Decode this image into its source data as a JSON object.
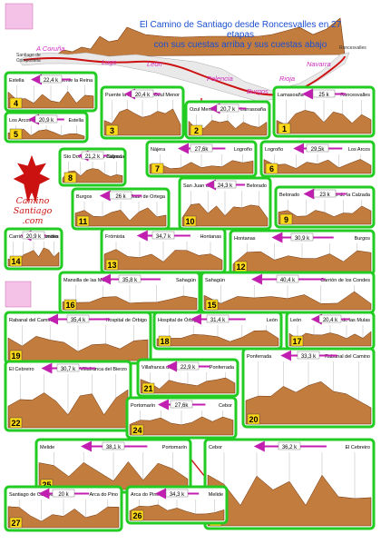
{
  "title": {
    "line1": "El Camino de Santiago desde Roncesvalles en 27 etapas",
    "line2": "con sus cuestas arriba y sus cuestas abajo"
  },
  "logo": {
    "text_line1": "El",
    "text_line2": "Camino",
    "text_line3": "Santiago",
    "text_line4": ".com"
  },
  "map": {
    "regions": [
      "A Coruña",
      "Lugo",
      "León",
      "Palencia",
      "Burgos",
      "Rioja",
      "Navarra"
    ],
    "start_label": "Santiago de Compostela",
    "end_label": "Roncesvalles"
  },
  "stages": [
    {
      "n": "1",
      "from": "Lamasoaña",
      "to": "Roncesvalles",
      "km": "25 k"
    },
    {
      "n": "2",
      "from": "Ozul Menor",
      "to": "Larrasoaña",
      "km": "20,7 k"
    },
    {
      "n": "3",
      "from": "Puente la Reina",
      "to": "Ozul Menor",
      "km": "20,4 k"
    },
    {
      "n": "4",
      "from": "Estella",
      "to": "Puente la Reina",
      "km": "22,4 k"
    },
    {
      "n": "5",
      "from": "Los Arcos",
      "to": "Estella",
      "km": "20,9 k"
    },
    {
      "n": "6",
      "from": "Logroño",
      "to": "Los Arcos",
      "km": "29,5k"
    },
    {
      "n": "7",
      "from": "Nájera",
      "to": "Logroño",
      "km": "27,6k"
    },
    {
      "n": "8",
      "from": "Sto Domingo de la Calzada",
      "to": "Nájera",
      "km": "21,2 k"
    },
    {
      "n": "9",
      "from": "Belorado",
      "to": "Sto Domingo de la Calzada",
      "km": "23 k"
    },
    {
      "n": "10",
      "from": "San Juan de Ortega",
      "to": "Belorado",
      "km": "24,3 k"
    },
    {
      "n": "11",
      "from": "Burgos",
      "to": "San Juan de Ortega",
      "km": "26 k"
    },
    {
      "n": "12",
      "from": "Hontanas",
      "to": "Burgos",
      "km": "30,9 k"
    },
    {
      "n": "13",
      "from": "Frómista",
      "to": "Hontanas",
      "km": "34,7 k"
    },
    {
      "n": "14",
      "from": "Carrión de los Condes",
      "to": "Frómista",
      "km": "20,9 k"
    },
    {
      "n": "15",
      "from": "Sahagún",
      "to": "Carrión de los Condes",
      "km": "40,4 k"
    },
    {
      "n": "16",
      "from": "Mansilla de las Mulas",
      "to": "Sahagún",
      "km": "35,8 k"
    },
    {
      "n": "17",
      "from": "León",
      "to": "Mansilla de las Mulas",
      "km": "20,4 k"
    },
    {
      "n": "18",
      "from": "Hospital de Órbigo",
      "to": "León",
      "km": "31,4 k"
    },
    {
      "n": "19",
      "from": "Rabanal del Camino",
      "to": "Hospital de Órbigo",
      "km": "35,4 k"
    },
    {
      "n": "20",
      "from": "Ponferrada",
      "to": "Rabanal del Camino",
      "km": "33,3 k"
    },
    {
      "n": "21",
      "from": "Villafranca del Bierzo",
      "to": "Ponferrada",
      "km": "22,9 k"
    },
    {
      "n": "22",
      "from": "El Cebreiro",
      "to": "Villafranca del Bierzo",
      "km": "30,7 k"
    },
    {
      "n": "23",
      "from": "Cebor",
      "to": "El Cebreiro",
      "km": "36,2 k"
    },
    {
      "n": "24",
      "from": "Portomarín",
      "to": "Cebor",
      "km": "27,6k"
    },
    {
      "n": "25",
      "from": "Melide",
      "to": "Portomarín",
      "km": "38,1 k"
    },
    {
      "n": "26",
      "from": "Arca do Pino",
      "to": "Melide",
      "km": "34,3 k"
    },
    {
      "n": "27",
      "from": "Santiago de Compostela",
      "to": "Arca do Pino",
      "km": "20 k"
    }
  ],
  "colors": {
    "frame": "#22cc22",
    "ground": "#c27c3e",
    "arrow": "#c01fb0",
    "number": "#ffd81a"
  }
}
